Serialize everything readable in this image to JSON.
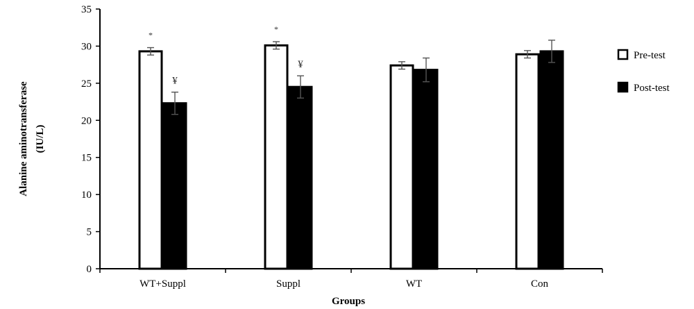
{
  "chart_data": {
    "type": "bar",
    "title": "",
    "xlabel": "Groups",
    "ylabel_line1": "Alanine  aminotransferase",
    "ylabel_line2": "(IU/L)",
    "ylim": [
      0,
      35
    ],
    "yticks": [
      "0",
      "5",
      "10",
      "15",
      "20",
      "25",
      "30",
      "35"
    ],
    "categories": [
      "WT+Suppl",
      "Suppl",
      "WT",
      "Con"
    ],
    "series": [
      {
        "name": "Pre-test",
        "fill": "#ffffff",
        "values": [
          29.3,
          30.1,
          27.4,
          28.9
        ],
        "errors": [
          0.5,
          0.5,
          0.5,
          0.5
        ]
      },
      {
        "name": "Post-test",
        "fill": "#000000",
        "values": [
          22.3,
          24.5,
          26.8,
          29.3
        ],
        "errors": [
          1.5,
          1.5,
          1.6,
          1.5
        ]
      }
    ],
    "annotations": [
      {
        "text": "*",
        "series": 0,
        "category": 0
      },
      {
        "text": "¥",
        "series": 1,
        "category": 0
      },
      {
        "text": "*",
        "series": 0,
        "category": 1
      },
      {
        "text": "¥",
        "series": 1,
        "category": 1
      }
    ],
    "grid": false,
    "legend_position": "right"
  }
}
